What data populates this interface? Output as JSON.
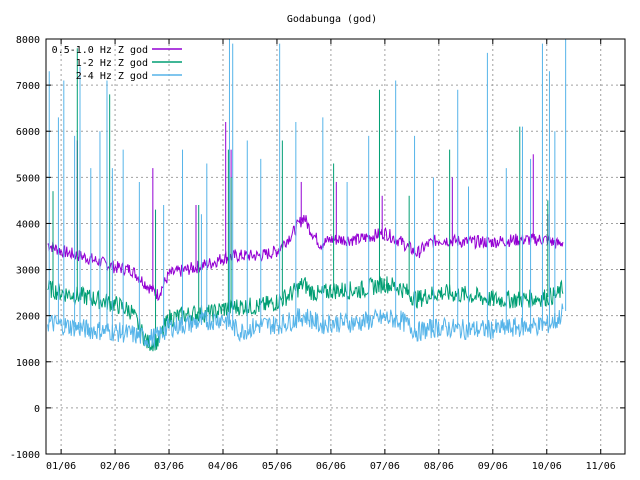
{
  "chart_data": {
    "type": "line",
    "title": "Godabunga (god)",
    "xlabel": "",
    "ylabel": "",
    "ylim": [
      -1000,
      8000
    ],
    "y_ticks": [
      -1000,
      0,
      1000,
      2000,
      3000,
      4000,
      5000,
      6000,
      7000,
      8000
    ],
    "x_ticks": [
      "01/06",
      "02/06",
      "03/06",
      "04/06",
      "05/06",
      "06/06",
      "07/06",
      "08/06",
      "09/06",
      "10/06",
      "11/06"
    ],
    "x_range_months": [
      0.72,
      11.45
    ],
    "grid": true,
    "legend_position": "top-left",
    "series": [
      {
        "name": "0.5-1.0 Hz Z god",
        "color": "#9400d3",
        "x": [
          0.75,
          1.0,
          1.5,
          2.0,
          2.3,
          2.6,
          2.8,
          3.0,
          3.5,
          3.8,
          4.0,
          4.3,
          4.7,
          5.0,
          5.3,
          5.5,
          5.6,
          5.8,
          6.0,
          6.5,
          7.0,
          7.3,
          7.6,
          7.8,
          8.0,
          8.5,
          9.0,
          9.5,
          10.0,
          10.2,
          10.3
        ],
        "values": [
          3550,
          3400,
          3250,
          3050,
          3000,
          2650,
          2450,
          2900,
          3050,
          3150,
          3250,
          3300,
          3300,
          3400,
          3800,
          4150,
          3900,
          3550,
          3650,
          3650,
          3800,
          3600,
          3350,
          3550,
          3650,
          3600,
          3600,
          3650,
          3650,
          3550,
          3600
        ],
        "spikes_x": [
          1.3,
          2.7,
          3.5,
          4.05,
          4.15,
          5.45,
          6.1,
          6.95,
          8.25,
          9.75,
          10.02
        ],
        "spikes_y": [
          5800,
          5200,
          4400,
          6200,
          5600,
          4900,
          4900,
          4600,
          5000,
          5500,
          4200
        ]
      },
      {
        "name": "1-2 Hz Z god",
        "color": "#009e73",
        "x": [
          0.75,
          1.0,
          1.5,
          2.0,
          2.3,
          2.6,
          2.8,
          3.0,
          3.5,
          3.8,
          4.0,
          4.3,
          4.7,
          5.0,
          5.3,
          5.5,
          5.6,
          5.8,
          6.0,
          6.5,
          7.0,
          7.3,
          7.6,
          7.8,
          8.0,
          8.5,
          9.0,
          9.5,
          10.0,
          10.2,
          10.3
        ],
        "values": [
          2600,
          2500,
          2400,
          2250,
          2100,
          1400,
          1450,
          1950,
          2050,
          2050,
          2150,
          2200,
          2200,
          2300,
          2500,
          2700,
          2550,
          2450,
          2550,
          2550,
          2700,
          2600,
          2350,
          2450,
          2500,
          2450,
          2350,
          2350,
          2400,
          2450,
          2600
        ],
        "spikes_x": [
          0.85,
          1.3,
          1.9,
          2.75,
          3.55,
          4.1,
          4.15,
          5.1,
          6.05,
          6.9,
          7.45,
          8.2,
          9.5,
          10.02
        ],
        "spikes_y": [
          4700,
          7800,
          6800,
          4300,
          4400,
          5600,
          5000,
          5800,
          5300,
          6900,
          4600,
          5600,
          6100,
          4500
        ]
      },
      {
        "name": "2-4 Hz Z god",
        "color": "#56b4e9",
        "x": [
          0.75,
          1.0,
          1.5,
          2.0,
          2.3,
          2.6,
          2.8,
          3.0,
          3.5,
          3.8,
          4.0,
          4.3,
          4.7,
          5.0,
          5.3,
          5.5,
          5.6,
          5.8,
          6.0,
          6.5,
          7.0,
          7.3,
          7.6,
          7.8,
          8.0,
          8.5,
          9.0,
          9.5,
          10.0,
          10.2,
          10.3
        ],
        "values": [
          1850,
          1800,
          1700,
          1650,
          1600,
          1500,
          1550,
          1750,
          1850,
          1900,
          1950,
          1650,
          1800,
          1800,
          1900,
          2000,
          1950,
          1800,
          1850,
          1850,
          1950,
          1900,
          1650,
          1700,
          1750,
          1700,
          1700,
          1750,
          1800,
          1900,
          2100
        ],
        "spikes_x": [
          0.78,
          0.95,
          1.05,
          1.25,
          1.35,
          1.55,
          1.72,
          1.85,
          1.95,
          2.15,
          2.45,
          2.9,
          3.25,
          3.6,
          3.7,
          4.12,
          4.18,
          4.45,
          4.7,
          5.05,
          5.35,
          5.85,
          6.3,
          6.7,
          7.2,
          7.55,
          7.9,
          8.35,
          8.55,
          8.9,
          9.25,
          9.55,
          9.7,
          9.92,
          10.05,
          10.15,
          10.35
        ],
        "spikes_y": [
          7300,
          6300,
          7100,
          5900,
          7400,
          5200,
          6000,
          7100,
          5200,
          5600,
          4900,
          4400,
          5600,
          4200,
          5300,
          8000,
          7900,
          5800,
          5400,
          7900,
          6200,
          6300,
          4900,
          5900,
          7100,
          5900,
          5000,
          6900,
          4800,
          7700,
          5200,
          6100,
          5400,
          7900,
          7300,
          6000,
          8000
        ]
      }
    ]
  }
}
